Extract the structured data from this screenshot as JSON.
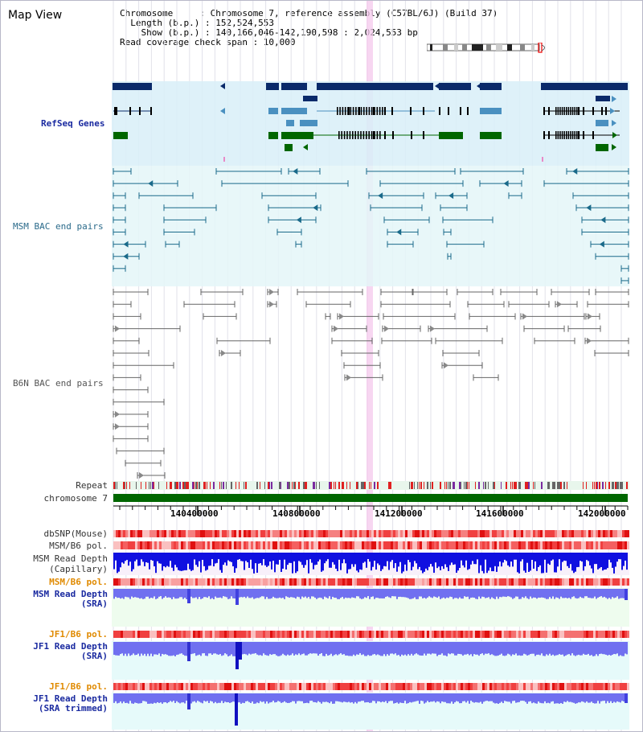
{
  "window": {
    "title": "Map View"
  },
  "info": {
    "line1": "Chromosome     : Chromosome 7, reference assembly (C57BL/6J) (Build 37)",
    "line2": "  Length (b.p.) : 152,524,553",
    "line3": "    Show (b.p.) : 140,166,046-142,190,598 : 2,024,553 bp",
    "line4": "Read coverage check span : 10,000"
  },
  "tracks": {
    "refseq": "RefSeq Genes",
    "msm_bac": "MSM BAC end pairs",
    "b6n_bac": "B6N BAC end pairs",
    "repeat": "Repeat",
    "chromosome": "chromosome 7",
    "dbsnp": "dbSNP(Mouse)",
    "msm_b6_pol1": "MSM/B6 pol.",
    "msm_depth_cap_1": "MSM Read Depth",
    "msm_depth_cap_2": "(Capillary)",
    "msm_b6_pol2": "MSM/B6 pol.",
    "msm_depth_sra_1": "MSM Read Depth",
    "msm_depth_sra_2": "(SRA)",
    "jf1_b6_pol1": "JF1/B6 pol.",
    "jf1_depth_sra_1": "JF1 Read Depth",
    "jf1_depth_sra_2": "(SRA)",
    "jf1_b6_pol2": "JF1/B6 pol.",
    "jf1_depth_trim_1": "JF1 Read Depth",
    "jf1_depth_trim_2": "(SRA trimmed)"
  },
  "axis": {
    "ticks": [
      "140400000",
      "140800000",
      "141200000",
      "141600000",
      "142000000"
    ]
  },
  "colors": {
    "gene_dark": "#0a2a6a",
    "gene_mid": "#4a90c0",
    "gene_green": "#006600",
    "refseq_bg": "#d8eef8",
    "msm_bg": "#e4f6f8",
    "msm_line": "#1a6a8a",
    "b6n_line": "#666666",
    "highlight": "#f4c8ec",
    "chrom_bar": "#006600",
    "depth_blue": "#1010e0",
    "depth_light": "#7070f0"
  }
}
